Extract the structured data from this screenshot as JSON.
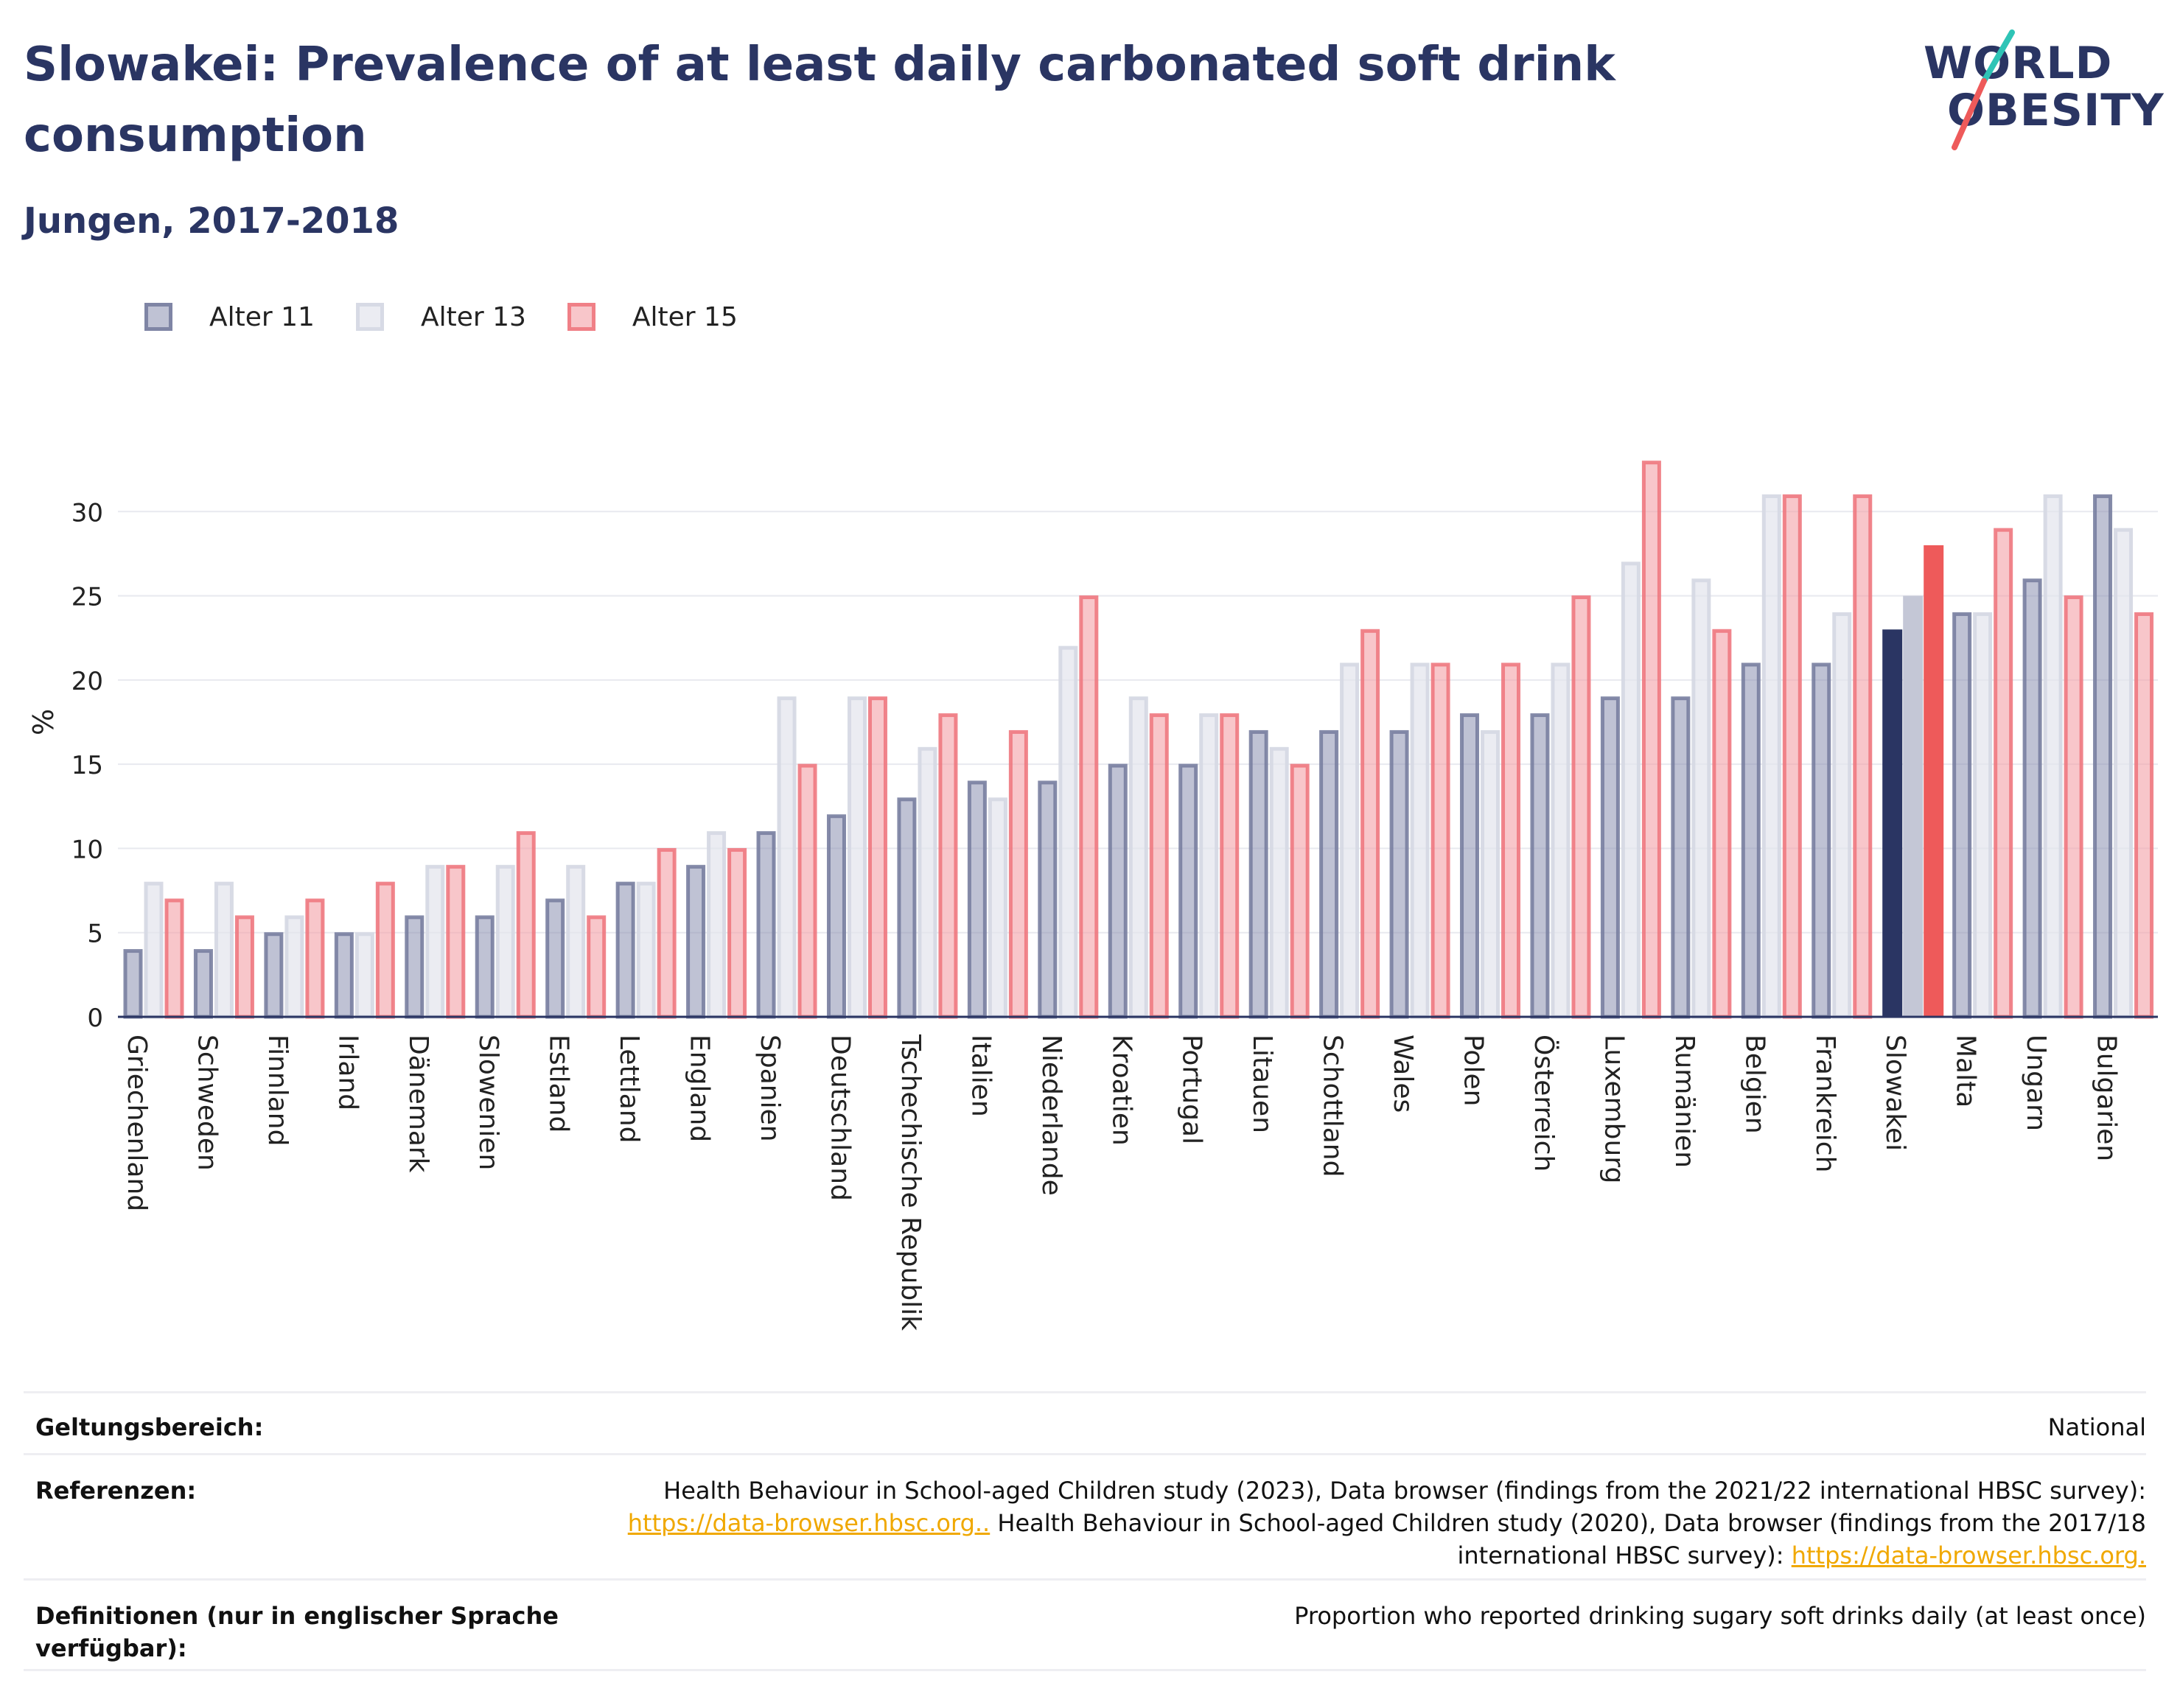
{
  "header": {
    "title": "Slowakei: Prevalence of at least daily carbonated soft drink consumption",
    "subtitle": "Jungen, 2017-2018"
  },
  "logo": {
    "line1": "WORLD",
    "line2": "OBESITY",
    "accent_colors": [
      "#2ec4b6",
      "#ee5a5a"
    ]
  },
  "legend": [
    {
      "label": "Alter 11",
      "color": "#8a90b0"
    },
    {
      "label": "Alter 13",
      "color": "#e2e4ec"
    },
    {
      "label": "Alter 15",
      "color": "#f4a0a6"
    }
  ],
  "chart_data": {
    "type": "bar",
    "ylabel": "%",
    "ylim": [
      0,
      35
    ],
    "yticks": [
      0,
      5,
      10,
      15,
      20,
      25,
      30
    ],
    "grid": true,
    "legend_position": "top-left",
    "highlight_category": "Slowakei",
    "highlight_colors": [
      "#2a3563",
      "#c4c7d6",
      "#ee5a5a"
    ],
    "categories": [
      "Griechenland",
      "Schweden",
      "Finnland",
      "Irland",
      "Dänemark",
      "Slowenien",
      "Estland",
      "Lettland",
      "England",
      "Spanien",
      "Deutschland",
      "Tschechische Republik",
      "Italien",
      "Niederlande",
      "Kroatien",
      "Portugal",
      "Litauen",
      "Schottland",
      "Wales",
      "Polen",
      "Österreich",
      "Luxemburg",
      "Rumänien",
      "Belgien",
      "Frankreich",
      "Slowakei",
      "Malta",
      "Ungarn",
      "Bulgarien"
    ],
    "series": [
      {
        "name": "Alter 11",
        "values": [
          4,
          4,
          5,
          5,
          6,
          6,
          7,
          8,
          9,
          11,
          12,
          13,
          14,
          14,
          15,
          15,
          17,
          17,
          17,
          18,
          18,
          19,
          19,
          21,
          21,
          23,
          24,
          26,
          31
        ]
      },
      {
        "name": "Alter 13",
        "values": [
          8,
          8,
          6,
          5,
          9,
          9,
          9,
          8,
          11,
          19,
          19,
          16,
          13,
          22,
          19,
          18,
          16,
          21,
          21,
          17,
          21,
          27,
          26,
          31,
          24,
          25,
          24,
          31,
          29
        ]
      },
      {
        "name": "Alter 15",
        "values": [
          7,
          6,
          7,
          8,
          9,
          11,
          6,
          10,
          10,
          15,
          19,
          18,
          17,
          25,
          18,
          18,
          15,
          23,
          21,
          21,
          25,
          33,
          23,
          31,
          31,
          28,
          29,
          25,
          24
        ]
      }
    ]
  },
  "meta": {
    "scope_label": "Geltungsbereich:",
    "scope_value": "National",
    "references_label": "Referenzen:",
    "ref_text_1": "Health Behaviour in School-aged Children study (2023), Data browser (findings from the 2021/22 international HBSC survey):",
    "ref_link_1": "https://data-browser.hbsc.org..",
    "ref_text_2": " Health Behaviour in School-aged Children study (2020), Data browser (findings from the 2017/18",
    "ref_text_3": "international HBSC survey): ",
    "ref_link_2": "https://data-browser.hbsc.org.",
    "definitions_label_1": "Definitionen (nur in englischer Sprache",
    "definitions_label_2": "verfügbar):",
    "definitions_value": "Proportion who reported drinking sugary soft drinks daily (at least once)"
  }
}
